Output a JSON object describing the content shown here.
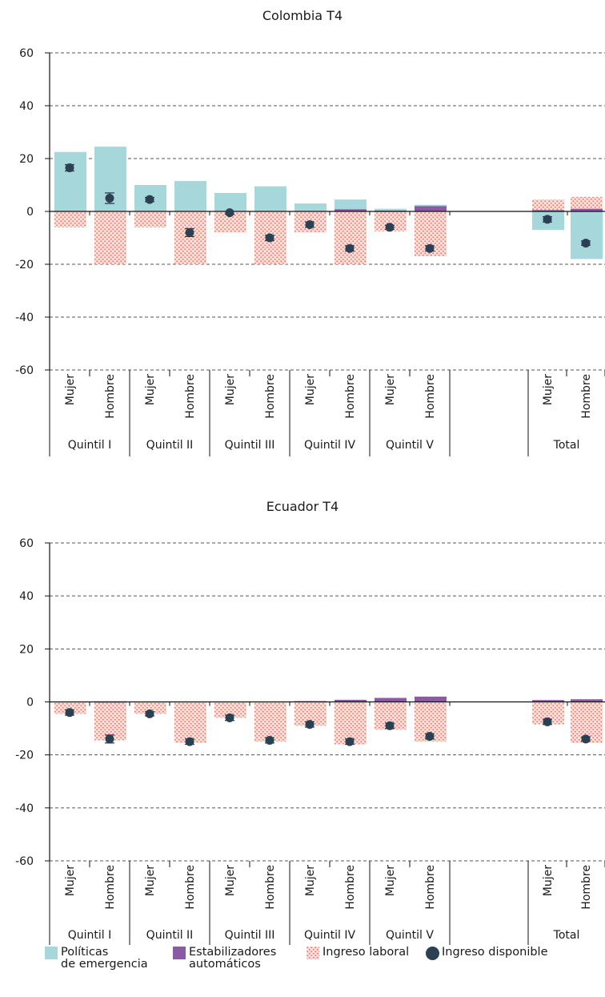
{
  "colors": {
    "emergency": "#a6d7db",
    "stabilizers": "#8a5ba3",
    "labor_dot": "#f07b6c",
    "disposable": "#2b4153",
    "grid": "#555555",
    "axis": "#111111"
  },
  "legend": {
    "emergency": "Políticas\nde emergencia",
    "stabilizers": "Estabilizadores\nautomáticos",
    "labor": "Ingreso laboral",
    "disposable": "Ingreso disponible"
  },
  "chart_data": [
    {
      "type": "bar",
      "title": "Colombia T4",
      "ylim": [
        -60,
        60
      ],
      "yticks": [
        "60",
        "40",
        "20",
        "0",
        "-20",
        "-40",
        "-60"
      ],
      "grid": true,
      "categories": [
        "Mujer",
        "Hombre",
        "Mujer",
        "Hombre",
        "Mujer",
        "Hombre",
        "Mujer",
        "Hombre",
        "Mujer",
        "Hombre",
        "Mujer",
        "Hombre"
      ],
      "groups": [
        "Quintil I",
        "Quintil II",
        "Quintil III",
        "Quintil IV",
        "Quintil V",
        "Total"
      ],
      "series": [
        {
          "name": "Políticas de emergencia",
          "values": [
            22.5,
            24.5,
            10,
            11.5,
            7,
            9.5,
            3,
            4.5,
            1,
            2.5,
            -7,
            -18
          ]
        },
        {
          "name": "Estabilizadores automáticos",
          "values": [
            0,
            0,
            0,
            0,
            0,
            0,
            0,
            0.8,
            0.3,
            2,
            0.5,
            1
          ]
        },
        {
          "name": "Ingreso laboral",
          "values": [
            -6,
            -20,
            -6,
            -20,
            -8,
            -20,
            -8,
            -20,
            -7.5,
            -17,
            4.5,
            5.5
          ]
        },
        {
          "name": "Ingreso disponible",
          "values": [
            16.5,
            5,
            4.5,
            -8,
            -0.5,
            -10,
            -5,
            -14,
            -6,
            -14,
            -3,
            -12
          ],
          "err": [
            1.2,
            2,
            0.8,
            1.5,
            0.6,
            1,
            1,
            1,
            0.8,
            1,
            1,
            0.8
          ]
        }
      ]
    },
    {
      "type": "bar",
      "title": "Ecuador T4",
      "ylim": [
        -60,
        60
      ],
      "yticks": [
        "60",
        "40",
        "20",
        "0",
        "-20",
        "-40",
        "-60"
      ],
      "grid": true,
      "categories": [
        "Mujer",
        "Hombre",
        "Mujer",
        "Hombre",
        "Mujer",
        "Hombre",
        "Mujer",
        "Hombre",
        "Mujer",
        "Hombre",
        "Mujer",
        "Hombre"
      ],
      "groups": [
        "Quintil I",
        "Quintil II",
        "Quintil III",
        "Quintil IV",
        "Quintil V",
        "Total"
      ],
      "series": [
        {
          "name": "Políticas de emergencia",
          "values": [
            0,
            0,
            0,
            0,
            0,
            0,
            0,
            0,
            0,
            0,
            0,
            0
          ]
        },
        {
          "name": "Estabilizadores automáticos",
          "values": [
            0,
            0.2,
            0,
            0,
            0,
            0,
            0.3,
            0.8,
            1.5,
            2,
            0.7,
            1
          ]
        },
        {
          "name": "Ingreso laboral",
          "values": [
            -4.5,
            -14.5,
            -4.5,
            -15.5,
            -6,
            -15,
            -9,
            -16,
            -10.5,
            -15,
            -8.5,
            -15.5
          ]
        },
        {
          "name": "Ingreso disponible",
          "values": [
            -4,
            -14,
            -4.5,
            -15,
            -6,
            -14.5,
            -8.5,
            -15,
            -9,
            -13,
            -7.5,
            -14
          ],
          "err": [
            1,
            1.5,
            0.8,
            1,
            1,
            1,
            1,
            1,
            1,
            1,
            1,
            0.8
          ]
        }
      ]
    }
  ]
}
